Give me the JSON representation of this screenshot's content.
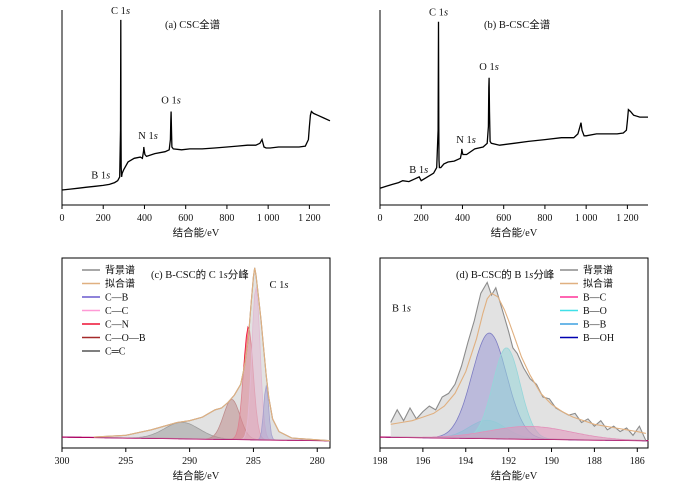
{
  "figure": {
    "background": "#ffffff"
  },
  "chart_data": [
    {
      "id": "a",
      "type": "line",
      "title": "(a)  CSC全谱",
      "xlabel": "结合能/eV",
      "xlim": [
        0,
        1300
      ],
      "xticks": [
        0,
        200,
        400,
        600,
        800,
        1000,
        1200
      ],
      "xtick_labels": [
        "0",
        "200",
        "400",
        "600",
        "800",
        "1 000",
        "1 200"
      ],
      "ylim": [
        0,
        100
      ],
      "series": [
        {
          "color": "#000000",
          "x": [
            0,
            40,
            80,
            120,
            160,
            200,
            230,
            255,
            270,
            280,
            284,
            285,
            286,
            287,
            289,
            292,
            300,
            320,
            350,
            380,
            390,
            396,
            397,
            398,
            402,
            410,
            450,
            500,
            520,
            526,
            528,
            529,
            531,
            533,
            540,
            580,
            620,
            680,
            740,
            800,
            850,
            900,
            940,
            960,
            970,
            975,
            980,
            990,
            1010,
            1050,
            1100,
            1150,
            1180,
            1195,
            1200,
            1205,
            1210,
            1220,
            1240,
            1270,
            1300
          ],
          "y": [
            8,
            8.5,
            9,
            9.5,
            10,
            10.5,
            11,
            12,
            13,
            15,
            40,
            99,
            40,
            20,
            15,
            17,
            19,
            23,
            25,
            25.6,
            25,
            29,
            31,
            30,
            27,
            26,
            27.5,
            28.5,
            29.5,
            35,
            45,
            50,
            40,
            31,
            30,
            29.5,
            30,
            30,
            30.5,
            31,
            31.5,
            32,
            32,
            33,
            35,
            33,
            31,
            30.5,
            30.5,
            31,
            31,
            31,
            31.5,
            35,
            42,
            48,
            50,
            49,
            48,
            46.5,
            45
          ]
        }
      ],
      "annotations": [
        {
          "text": "C 1s",
          "x": 284,
          "y": 99
        },
        {
          "text": "N 1s",
          "x": 398,
          "y": 31
        },
        {
          "text": "O 1s",
          "x": 529,
          "y": 50
        },
        {
          "text": "B 1s",
          "x": 188,
          "y": 12
        }
      ]
    },
    {
      "id": "b",
      "type": "line",
      "title": "(b)  B-CSC全谱",
      "xlabel": "结合能/eV",
      "xlim": [
        0,
        1300
      ],
      "xticks": [
        0,
        200,
        400,
        600,
        800,
        1000,
        1200
      ],
      "xtick_labels": [
        "0",
        "200",
        "400",
        "600",
        "800",
        "1 000",
        "1 200"
      ],
      "ylim": [
        0,
        100
      ],
      "series": [
        {
          "color": "#000000",
          "x": [
            0,
            30,
            60,
            90,
            110,
            140,
            170,
            190,
            200,
            230,
            260,
            275,
            282,
            284,
            285,
            286,
            288,
            295,
            310,
            330,
            360,
            390,
            396,
            397,
            398,
            402,
            420,
            460,
            500,
            520,
            526,
            528,
            529,
            531,
            534,
            540,
            580,
            650,
            720,
            800,
            880,
            940,
            960,
            970,
            975,
            980,
            990,
            1000,
            1050,
            1100,
            1150,
            1180,
            1195,
            1200,
            1205,
            1215,
            1230,
            1260,
            1300
          ],
          "y": [
            9,
            10,
            11,
            12,
            13,
            12.5,
            14,
            15,
            13,
            15,
            17,
            20,
            40,
            98,
            42,
            24,
            20,
            20,
            22,
            23,
            23.5,
            25,
            28,
            30,
            29,
            27,
            27,
            30,
            31,
            33,
            42,
            63,
            68,
            50,
            34,
            33,
            32,
            33,
            34,
            35,
            36,
            36,
            38,
            42,
            44,
            40,
            37,
            37,
            38,
            38,
            38,
            38.5,
            40,
            45,
            51,
            50,
            48,
            47,
            47
          ]
        }
      ],
      "annotations": [
        {
          "text": "C 1s",
          "x": 284,
          "y": 98
        },
        {
          "text": "N 1s",
          "x": 398,
          "y": 29
        },
        {
          "text": "O 1s",
          "x": 529,
          "y": 68
        },
        {
          "text": "B 1s",
          "x": 188,
          "y": 15
        }
      ]
    },
    {
      "id": "c",
      "type": "area",
      "title": "(c)  B-CSC的 C 1s分峰",
      "xlabel": "结合能/eV",
      "xlim": [
        300,
        279
      ],
      "xticks": [
        300,
        295,
        290,
        285,
        280
      ],
      "xtick_labels": [
        "300",
        "295",
        "290",
        "285",
        "280"
      ],
      "ylim": [
        0,
        100
      ],
      "peak_label": {
        "text": "C 1s",
        "x": 283.0,
        "y": 88
      },
      "legend": {
        "position": "top-left",
        "entries": [
          "背景谱",
          "拟合谱",
          "C—B",
          "C—C",
          "C—N",
          "C—O—B",
          "C═C"
        ]
      },
      "series": [
        {
          "name": "背景谱",
          "color": "#8c8c8c",
          "x": [
            297.5,
            295,
            293,
            292,
            291,
            290,
            289,
            288.5,
            288,
            287.5,
            287,
            286.5,
            286,
            285.7,
            285.4,
            285.2,
            285.0,
            284.9,
            284.8,
            284.6,
            284.4,
            284.2,
            284.0,
            283.8,
            283.5,
            283,
            282,
            281,
            280,
            279
          ],
          "y": [
            6,
            7,
            10,
            12,
            14,
            15,
            17,
            19,
            21,
            22,
            25,
            29,
            35,
            45,
            60,
            78,
            94,
            99,
            95,
            83,
            70,
            55,
            40,
            28,
            16,
            9,
            5.5,
            5,
            4.5,
            4
          ]
        },
        {
          "name": "拟合谱",
          "color": "#e0b080",
          "x": [
            297.5,
            295,
            293,
            292,
            291,
            290,
            289,
            288.5,
            288,
            287.5,
            287,
            286.5,
            286,
            285.7,
            285.4,
            285.2,
            285.0,
            284.9,
            284.8,
            284.6,
            284.4,
            284.2,
            284.0,
            283.8,
            283.5,
            283,
            282,
            281,
            280,
            279
          ],
          "y": [
            6,
            7,
            10,
            12,
            14,
            15,
            17,
            19,
            21,
            22,
            25,
            29,
            35,
            45,
            60,
            78,
            94,
            99,
            95,
            83,
            70,
            55,
            40,
            28,
            16,
            9,
            5.5,
            5,
            4.5,
            4
          ]
        },
        {
          "name": "C—B",
          "color": "#6a5acd",
          "fill": "#6a5acd",
          "peak": {
            "center": 284.0,
            "height": 30,
            "fwhm": 0.45
          }
        },
        {
          "name": "C—C",
          "color": "#ff9ad6",
          "fill": "#ff9ad6",
          "peak": {
            "center": 284.8,
            "height": 84,
            "fwhm": 0.75
          }
        },
        {
          "name": "C—N",
          "color": "#ee1133",
          "fill": "#ee1133",
          "peak": {
            "center": 285.4,
            "height": 62,
            "fwhm": 0.9
          }
        },
        {
          "name": "C—O—B",
          "color": "#a52a2a",
          "fill": "#a52a2a",
          "peak": {
            "center": 286.7,
            "height": 22,
            "fwhm": 1.5
          }
        },
        {
          "name": "C═C",
          "color": "#555555",
          "fill": "#555555",
          "peak": {
            "center": 290.6,
            "height": 9,
            "fwhm": 3.2
          }
        }
      ]
    },
    {
      "id": "d",
      "type": "area",
      "title": "(d)  B-CSC的 B 1s分峰",
      "xlabel": "结合能/eV",
      "xlim": [
        198,
        185.5
      ],
      "xticks": [
        198,
        196,
        194,
        192,
        190,
        188,
        186
      ],
      "xtick_labels": [
        "198",
        "196",
        "194",
        "192",
        "190",
        "188",
        "186"
      ],
      "ylim": [
        0,
        100
      ],
      "peak_label": {
        "text": "B 1s",
        "x": 197.0,
        "y": 75
      },
      "legend": {
        "position": "top-right",
        "entries": [
          "背景谱",
          "拟合谱",
          "B—C",
          "B—O",
          "B—B",
          "B—OH"
        ]
      },
      "series": [
        {
          "name": "背景谱",
          "color": "#8c8c8c",
          "x": [
            197.5,
            197.2,
            196.9,
            196.6,
            196.3,
            196.0,
            195.7,
            195.4,
            195.1,
            194.8,
            194.5,
            194.2,
            193.9,
            193.6,
            193.3,
            193.0,
            192.8,
            192.6,
            192.4,
            192.2,
            192.0,
            191.8,
            191.6,
            191.3,
            191.0,
            190.7,
            190.4,
            190.1,
            189.8,
            189.5,
            189.2,
            188.9,
            188.6,
            188.3,
            188.0,
            187.7,
            187.4,
            187.1,
            186.8,
            186.5,
            186.2,
            185.9,
            185.6
          ],
          "y": [
            14,
            21,
            15,
            22,
            16,
            20,
            23,
            21,
            28,
            30,
            35,
            45,
            58,
            70,
            85,
            91,
            84,
            88,
            80,
            72,
            64,
            55,
            52,
            44,
            38,
            35,
            28,
            27,
            22,
            20,
            18,
            19,
            14,
            16,
            12,
            15,
            10,
            12,
            9,
            11,
            7,
            12,
            4
          ]
        },
        {
          "name": "拟合谱",
          "color": "#e0b080",
          "x": [
            197.5,
            197,
            196.5,
            196,
            195.5,
            195,
            194.5,
            194,
            193.5,
            193.2,
            193,
            192.8,
            192.5,
            192.2,
            192,
            191.7,
            191.4,
            191,
            190.5,
            190,
            189.5,
            189,
            188.5,
            188,
            187.5,
            187,
            186.5,
            186,
            185.6
          ],
          "y": [
            13,
            14,
            15,
            17,
            19,
            23,
            30,
            42,
            60,
            74,
            82,
            85,
            83,
            76,
            70,
            60,
            50,
            40,
            30,
            24,
            20,
            17,
            15,
            13,
            12,
            11,
            10,
            9,
            8
          ]
        },
        {
          "name": "B—C",
          "color": "#ff3399",
          "fill": "#ff3399",
          "peak": {
            "center": 191.0,
            "height": 7,
            "fwhm": 4.5
          }
        },
        {
          "name": "B—O",
          "color": "#40e0e8",
          "fill": "#40e0e8",
          "peak": {
            "center": 192.1,
            "height": 50,
            "fwhm": 1.5
          }
        },
        {
          "name": "B—B",
          "color": "#3da0e0",
          "fill": "#3da0e0",
          "peak": {
            "center": 193.0,
            "height": 10,
            "fwhm": 2.0
          }
        },
        {
          "name": "B—OH",
          "color": "#0000b0",
          "fill": "#4f49e0",
          "peak": {
            "center": 192.9,
            "height": 58,
            "fwhm": 1.9
          }
        }
      ]
    }
  ]
}
